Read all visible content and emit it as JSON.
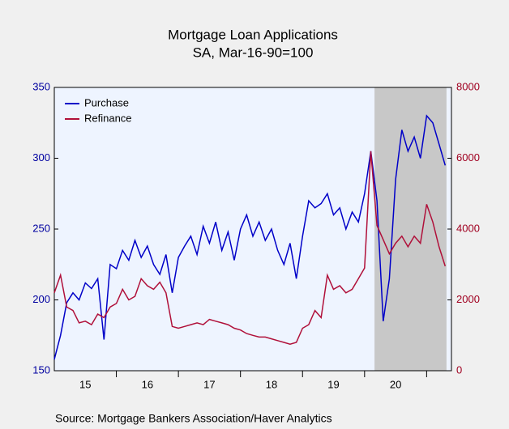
{
  "chart_data": {
    "type": "line",
    "title": "Mortgage Loan Applications",
    "subtitle": "SA, Mar-16-90=100",
    "source": "Source:  Mortgage Bankers Association/Haver Analytics",
    "x": [
      15.0,
      15.1,
      15.2,
      15.3,
      15.4,
      15.5,
      15.6,
      15.7,
      15.8,
      15.9,
      16.0,
      16.1,
      16.2,
      16.3,
      16.4,
      16.5,
      16.6,
      16.7,
      16.8,
      16.9,
      17.0,
      17.1,
      17.2,
      17.3,
      17.4,
      17.5,
      17.6,
      17.7,
      17.8,
      17.9,
      18.0,
      18.1,
      18.2,
      18.3,
      18.4,
      18.5,
      18.6,
      18.7,
      18.8,
      18.9,
      19.0,
      19.1,
      19.2,
      19.3,
      19.4,
      19.5,
      19.6,
      19.7,
      19.8,
      19.9,
      20.0,
      20.1,
      20.2,
      20.3,
      20.4,
      20.5,
      20.6,
      20.7,
      20.8,
      20.9,
      21.0,
      21.1,
      21.2,
      21.3
    ],
    "series": [
      {
        "name": "Purchase",
        "color": "#0000c8",
        "axis": "y",
        "values": [
          158,
          175,
          198,
          205,
          200,
          212,
          208,
          215,
          172,
          225,
          222,
          235,
          228,
          242,
          230,
          238,
          225,
          218,
          232,
          205,
          230,
          238,
          245,
          232,
          252,
          240,
          255,
          235,
          248,
          228,
          250,
          260,
          245,
          255,
          242,
          250,
          235,
          225,
          240,
          215,
          245,
          270,
          265,
          268,
          275,
          260,
          265,
          250,
          262,
          255,
          275,
          305,
          270,
          185,
          215,
          285,
          320,
          305,
          315,
          300,
          330,
          325,
          310,
          295
        ]
      },
      {
        "name": "Refinance",
        "color": "#b0103a",
        "axis": "y2",
        "values": [
          2200,
          2700,
          1800,
          1700,
          1350,
          1400,
          1300,
          1600,
          1500,
          1800,
          1900,
          2300,
          2000,
          2100,
          2600,
          2400,
          2300,
          2500,
          2200,
          1250,
          1200,
          1250,
          1300,
          1350,
          1300,
          1450,
          1400,
          1350,
          1300,
          1200,
          1150,
          1050,
          1000,
          950,
          950,
          900,
          850,
          800,
          750,
          800,
          1200,
          1300,
          1700,
          1500,
          2700,
          2300,
          2400,
          2200,
          2300,
          2600,
          2900,
          6200,
          4100,
          3700,
          3300,
          3600,
          3800,
          3500,
          3800,
          3600,
          4700,
          4200,
          3500,
          2950
        ]
      }
    ],
    "xlim": [
      15,
      21.4
    ],
    "xticks": [
      {
        "value": 15.5,
        "label": "15"
      },
      {
        "value": 16.5,
        "label": "16"
      },
      {
        "value": 17.5,
        "label": "17"
      },
      {
        "value": 18.5,
        "label": "18"
      },
      {
        "value": 19.5,
        "label": "19"
      },
      {
        "value": 20.5,
        "label": "20"
      }
    ],
    "ylim": [
      150,
      350
    ],
    "yticks": [
      150,
      200,
      250,
      300,
      350
    ],
    "ycolor": "#0000a0",
    "y2lim": [
      0,
      8000
    ],
    "y2ticks": [
      0,
      2000,
      4000,
      6000,
      8000
    ],
    "y2color": "#a00020",
    "shaded_x": [
      20.16,
      21.32
    ],
    "shade_color": "#c8c8c8",
    "plot_background": "#eef4ff",
    "legend": "upper left",
    "grid": false
  }
}
